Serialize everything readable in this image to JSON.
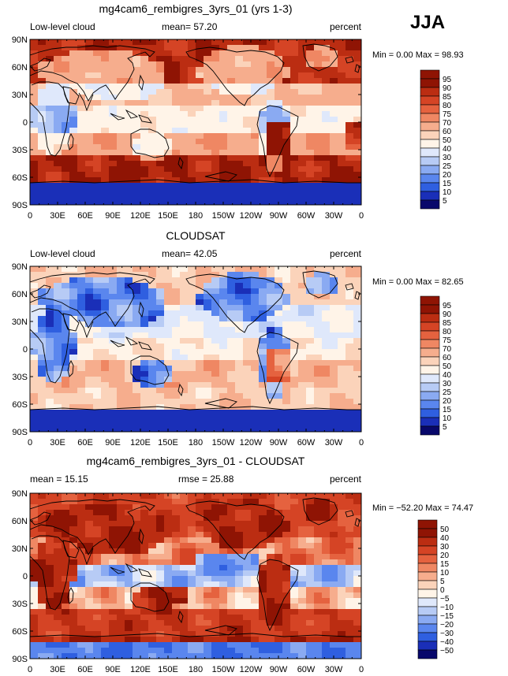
{
  "season_label": "JJA",
  "chart_data": [
    {
      "type": "heatmap",
      "title": "mg4cam6_rembigres_3yrs_01 (yrs 1-3)",
      "left_label": "Low-level cloud",
      "center_label": "mean=  57.20",
      "right_label": "percent",
      "stats_label": "Min =    0.00 Max =   98.93",
      "mean": 57.2,
      "min": 0.0,
      "max": 98.93,
      "x_ticks": [
        "0",
        "30E",
        "60E",
        "90E",
        "120E",
        "150E",
        "180",
        "150W",
        "120W",
        "90W",
        "60W",
        "30W",
        "0"
      ],
      "y_ticks": [
        "90N",
        "60N",
        "30N",
        "0",
        "30S",
        "60S",
        "90S"
      ],
      "xlim": [
        0,
        360
      ],
      "ylim": [
        -90,
        90
      ],
      "colorbar_levels": [
        "95",
        "90",
        "85",
        "80",
        "75",
        "70",
        "60",
        "50",
        "40",
        "30",
        "25",
        "20",
        "15",
        "10",
        "5"
      ]
    },
    {
      "type": "heatmap",
      "title": "CLOUDSAT",
      "left_label": "Low-level cloud",
      "center_label": "mean=  42.05",
      "right_label": "percent",
      "stats_label": "Min =    0.00 Max =   82.65",
      "mean": 42.05,
      "min": 0.0,
      "max": 82.65,
      "x_ticks": [
        "0",
        "30E",
        "60E",
        "90E",
        "120E",
        "150E",
        "180",
        "150W",
        "120W",
        "90W",
        "60W",
        "30W",
        "0"
      ],
      "y_ticks": [
        "90N",
        "60N",
        "30N",
        "0",
        "30S",
        "60S",
        "90S"
      ],
      "xlim": [
        0,
        360
      ],
      "ylim": [
        -90,
        90
      ],
      "colorbar_levels": [
        "95",
        "90",
        "85",
        "80",
        "75",
        "70",
        "60",
        "50",
        "40",
        "30",
        "25",
        "20",
        "15",
        "10",
        "5"
      ]
    },
    {
      "type": "heatmap",
      "title": "mg4cam6_rembigres_3yrs_01 - CLOUDSAT",
      "left_label": "mean =  15.15",
      "center_label": "rmse =  25.88",
      "right_label": "percent",
      "stats_label": "Min = −52.20 Max =   74.47",
      "mean": 15.15,
      "rmse": 25.88,
      "min": -52.2,
      "max": 74.47,
      "x_ticks": [
        "0",
        "30E",
        "60E",
        "90E",
        "120E",
        "150E",
        "180",
        "150W",
        "120W",
        "90W",
        "60W",
        "30W",
        "0"
      ],
      "y_ticks": [
        "90N",
        "60N",
        "30N",
        "0",
        "30S",
        "60S",
        "90S"
      ],
      "xlim": [
        0,
        360
      ],
      "ylim": [
        -90,
        90
      ],
      "colorbar_levels": [
        "50",
        "40",
        "30",
        "20",
        "15",
        "10",
        "5",
        "0",
        "−5",
        "−10",
        "−15",
        "−20",
        "−30",
        "−40",
        "−50"
      ]
    }
  ],
  "colors": {
    "scale": [
      "#08086b",
      "#1a2fb8",
      "#2f5fe0",
      "#5a86ee",
      "#8aaaf2",
      "#b7cbf5",
      "#dfe8fb",
      "#fff4e8",
      "#fbd3ba",
      "#f6ad8d",
      "#ef8763",
      "#e5623f",
      "#d54425",
      "#bb2d12",
      "#8f1404"
    ]
  }
}
